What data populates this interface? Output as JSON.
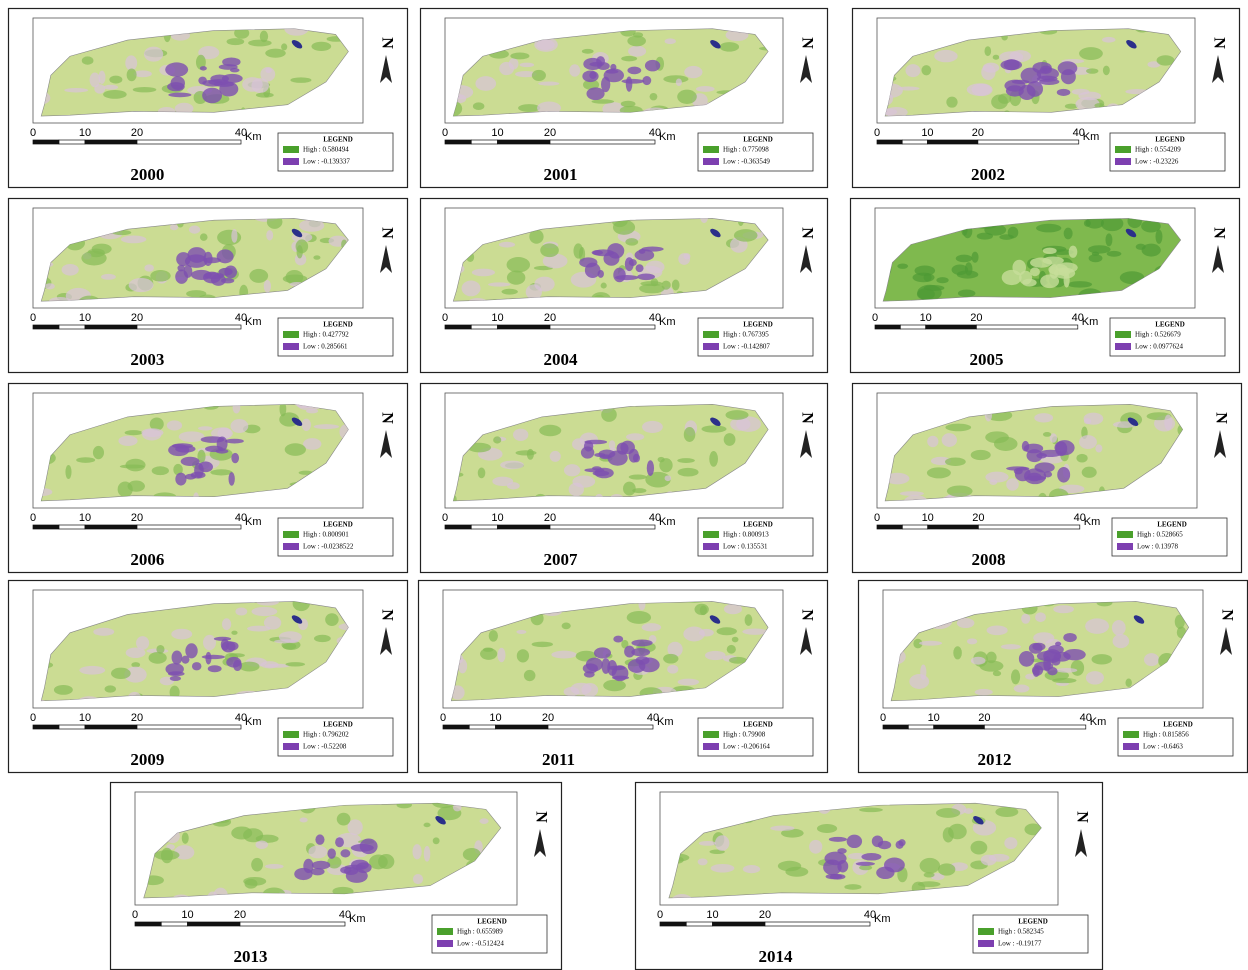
{
  "figure": {
    "legend_title": "LEGEND",
    "north": "N",
    "scale_labels": [
      "0",
      "10",
      "20",
      "40",
      "Km"
    ],
    "panels": [
      {
        "year": "2000",
        "high": "High : 0.580494",
        "low": "Low : -0.139337"
      },
      {
        "year": "2001",
        "high": "High : 0.775098",
        "low": "Low : -0.363549"
      },
      {
        "year": "2002",
        "high": "High : 0.554209",
        "low": "Low : -0.23226"
      },
      {
        "year": "2003",
        "high": "High : 0.427792",
        "low": "Low : 0.285661"
      },
      {
        "year": "2004",
        "high": "High : 0.767395",
        "low": "Low : -0.142807"
      },
      {
        "year": "2005",
        "high": "High : 0.526679",
        "low": "Low : 0.0977624"
      },
      {
        "year": "2006",
        "high": "High : 0.800901",
        "low": "Low : -0.0238522"
      },
      {
        "year": "2007",
        "high": "High : 0.800913",
        "low": "Low : 0.135531"
      },
      {
        "year": "2008",
        "high": "High : 0.528665",
        "low": "Low : 0.13978"
      },
      {
        "year": "2009",
        "high": "High : 0.796202",
        "low": "Low : -0.52208"
      },
      {
        "year": "2011",
        "high": "High : 0.79908",
        "low": "Low : -0.206164"
      },
      {
        "year": "2012",
        "high": "High : 0.815856",
        "low": "Low : -0.6463"
      },
      {
        "year": "2013",
        "high": "High : 0.655989",
        "low": "Low : -0.512424"
      },
      {
        "year": "2014",
        "high": "High : 0.582345",
        "low": "Low : -0.19177"
      }
    ]
  }
}
